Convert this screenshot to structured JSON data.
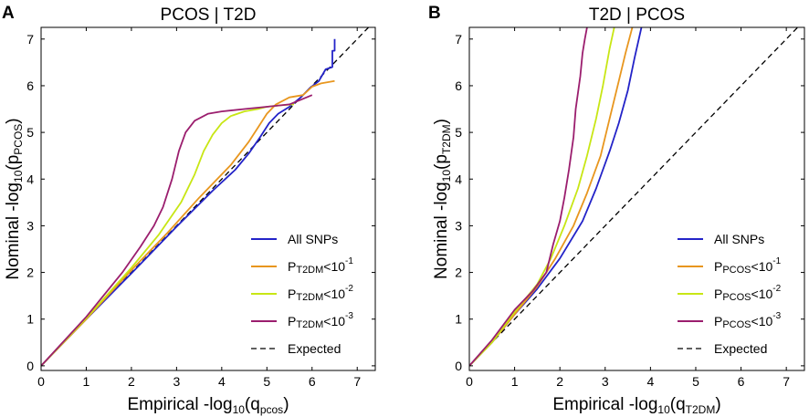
{
  "figure": {
    "panels": [
      "A",
      "B"
    ]
  },
  "chart_data": [
    {
      "panel": "A",
      "type": "line",
      "title": "PCOS | T2D",
      "xlabel": {
        "main": "Empirical -log",
        "base": "10",
        "paren_open": "(q",
        "sub": "pcos",
        "paren_close": ")"
      },
      "ylabel": {
        "main": "Nominal -log",
        "base": "10",
        "paren_open": "(p",
        "sub": "PCOS",
        "paren_close": ")"
      },
      "xlim": [
        0,
        7.4
      ],
      "ylim": [
        -0.1,
        7.25
      ],
      "xticks": [
        "0",
        "1",
        "2",
        "3",
        "4",
        "5",
        "6",
        "7"
      ],
      "yticks": [
        "0",
        "1",
        "2",
        "3",
        "4",
        "5",
        "6",
        "7"
      ],
      "legend_position": "lower-right",
      "series": [
        {
          "name": "All SNPs",
          "legend": {
            "text": "All SNPs"
          },
          "color": "#2323c8",
          "x": [
            0,
            1,
            2,
            3,
            3.8,
            4.3,
            4.6,
            4.85,
            5.05,
            5.25,
            5.5,
            5.75,
            5.95,
            6.15,
            6.3,
            6.45,
            6.45,
            6.5,
            6.5
          ],
          "y": [
            0,
            1,
            1.98,
            2.98,
            3.75,
            4.2,
            4.55,
            4.9,
            5.2,
            5.4,
            5.55,
            5.75,
            5.95,
            6.1,
            6.35,
            6.4,
            6.75,
            6.75,
            7.0
          ]
        },
        {
          "name": "P_T2DM<10^-1",
          "legend": {
            "lead": "P",
            "sub": "T2DM",
            "mid": "<10",
            "sup": "-1"
          },
          "color": "#e8961e",
          "x": [
            0,
            1,
            2,
            2.8,
            3.5,
            4.2,
            4.6,
            4.8,
            5.0,
            5.2,
            5.5,
            5.8,
            6.0,
            6.2,
            6.5
          ],
          "y": [
            0,
            1,
            2.05,
            2.85,
            3.6,
            4.3,
            4.8,
            5.1,
            5.4,
            5.6,
            5.75,
            5.8,
            5.98,
            6.05,
            6.1
          ]
        },
        {
          "name": "P_T2DM<10^-2",
          "legend": {
            "lead": "P",
            "sub": "T2DM",
            "mid": "<10",
            "sup": "-2"
          },
          "color": "#c8e614",
          "x": [
            0,
            1,
            2,
            2.6,
            3.1,
            3.4,
            3.6,
            3.8,
            4.0,
            4.2,
            4.5,
            4.8,
            5.0,
            5.3,
            5.6
          ],
          "y": [
            0,
            1.02,
            2.1,
            2.8,
            3.5,
            4.1,
            4.6,
            4.95,
            5.2,
            5.35,
            5.45,
            5.5,
            5.55,
            5.58,
            5.6
          ]
        },
        {
          "name": "P_T2DM<10^-3",
          "legend": {
            "lead": "P",
            "sub": "T2DM",
            "mid": "<10",
            "sup": "-3"
          },
          "color": "#9b1e6e",
          "x": [
            0,
            1,
            1.8,
            2.2,
            2.5,
            2.7,
            2.9,
            3.05,
            3.2,
            3.4,
            3.7,
            4.0,
            4.5,
            5.0,
            5.5,
            6.0
          ],
          "y": [
            0,
            1.05,
            2.0,
            2.55,
            3.0,
            3.4,
            4.0,
            4.6,
            5.0,
            5.25,
            5.4,
            5.45,
            5.5,
            5.55,
            5.6,
            5.8
          ]
        }
      ],
      "expected": {
        "name": "Expected",
        "legend": {
          "text": "Expected"
        },
        "color": "#000000",
        "x": [
          0,
          7.4
        ],
        "y": [
          0,
          7.4
        ]
      }
    },
    {
      "panel": "B",
      "type": "line",
      "title": "T2D | PCOS",
      "xlabel": {
        "main": "Empirical -log",
        "base": "10",
        "paren_open": "(q",
        "sub": "T2DM",
        "paren_close": ")"
      },
      "ylabel": {
        "main": "Nominal -log",
        "base": "10",
        "paren_open": "(p",
        "sub": "T2DM",
        "paren_close": ")"
      },
      "xlim": [
        0,
        7.4
      ],
      "ylim": [
        -0.1,
        7.25
      ],
      "xticks": [
        "0",
        "1",
        "2",
        "3",
        "4",
        "5",
        "6",
        "7"
      ],
      "yticks": [
        "0",
        "1",
        "2",
        "3",
        "4",
        "5",
        "6",
        "7"
      ],
      "legend_position": "lower-right",
      "series": [
        {
          "name": "All SNPs",
          "legend": {
            "text": "All SNPs"
          },
          "color": "#2323c8",
          "x": [
            0,
            0.5,
            1,
            1.5,
            2,
            2.5,
            2.8,
            3.1,
            3.3,
            3.5,
            3.65,
            3.8
          ],
          "y": [
            0,
            0.5,
            1.1,
            1.65,
            2.3,
            3.1,
            3.8,
            4.6,
            5.2,
            5.9,
            6.6,
            7.25
          ]
        },
        {
          "name": "P_PCOS<10^-1",
          "legend": {
            "lead": "P",
            "sub": "PCOS",
            "mid": "<10",
            "sup": "-1"
          },
          "color": "#e8961e",
          "x": [
            0,
            0.5,
            1,
            1.5,
            1.9,
            2.3,
            2.6,
            2.9,
            3.1,
            3.3,
            3.45,
            3.6
          ],
          "y": [
            0,
            0.5,
            1.1,
            1.7,
            2.3,
            3.0,
            3.7,
            4.5,
            5.3,
            6.1,
            6.7,
            7.25
          ]
        },
        {
          "name": "P_PCOS<10^-2",
          "legend": {
            "lead": "P",
            "sub": "PCOS",
            "mid": "<10",
            "sup": "-2"
          },
          "color": "#c8e614",
          "x": [
            0,
            0.5,
            1,
            1.5,
            1.8,
            2.1,
            2.4,
            2.6,
            2.8,
            2.95,
            3.1,
            3.2
          ],
          "y": [
            0,
            0.5,
            1.15,
            1.75,
            2.3,
            3.0,
            3.8,
            4.5,
            5.3,
            6.0,
            6.8,
            7.25
          ]
        },
        {
          "name": "P_PCOS<10^-3",
          "legend": {
            "lead": "P",
            "sub": "PCOS",
            "mid": "<10",
            "sup": "-3"
          },
          "color": "#9b1e6e",
          "x": [
            0,
            0.5,
            1,
            1.4,
            1.7,
            1.85,
            2.0,
            2.1,
            2.2,
            2.3,
            2.35,
            2.45,
            2.5,
            2.55,
            2.6
          ],
          "y": [
            0,
            0.55,
            1.2,
            1.6,
            2.0,
            2.6,
            3.1,
            3.6,
            4.2,
            4.9,
            5.5,
            6.2,
            6.7,
            7.0,
            7.25
          ]
        }
      ],
      "expected": {
        "name": "Expected",
        "legend": {
          "text": "Expected"
        },
        "color": "#000000",
        "x": [
          0,
          7.4
        ],
        "y": [
          0,
          7.4
        ]
      }
    }
  ]
}
